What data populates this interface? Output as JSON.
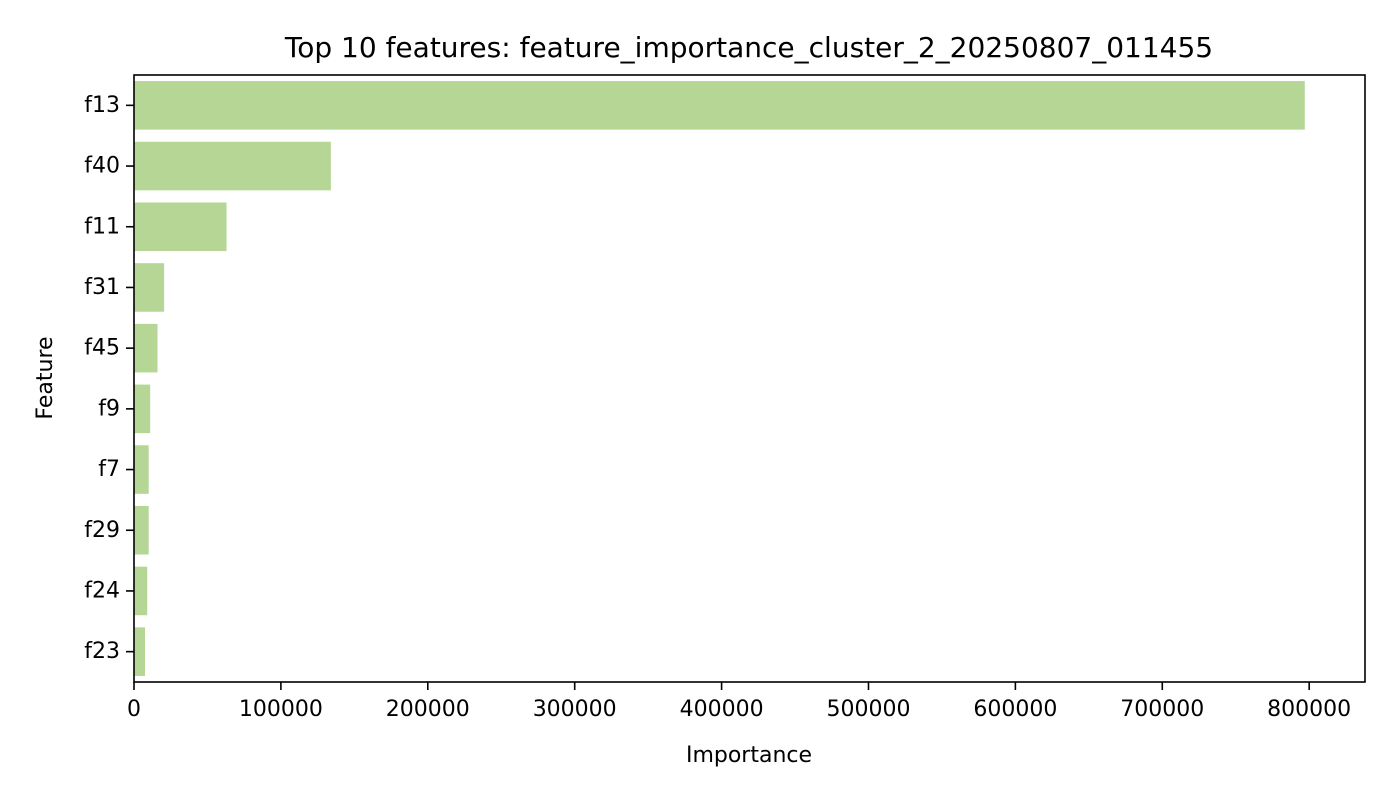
{
  "colors": {
    "bar": "#b5d695",
    "axis": "#000000",
    "background": "#ffffff"
  },
  "chart_data": {
    "type": "bar",
    "orientation": "horizontal",
    "title": "Top 10 features: feature_importance_cluster_2_20250807_011455",
    "xlabel": "Importance",
    "ylabel": "Feature",
    "categories": [
      "f13",
      "f40",
      "f11",
      "f31",
      "f45",
      "f9",
      "f7",
      "f29",
      "f24",
      "f23"
    ],
    "values": [
      797000,
      134000,
      63000,
      20500,
      16000,
      11000,
      10000,
      10000,
      9000,
      7500
    ],
    "xlim": [
      0,
      838000
    ],
    "xticks": [
      0,
      100000,
      200000,
      300000,
      400000,
      500000,
      600000,
      700000,
      800000
    ],
    "xtick_labels": [
      "0",
      "100000",
      "200000",
      "300000",
      "400000",
      "500000",
      "600000",
      "700000",
      "800000"
    ],
    "grid": false,
    "legend": "none"
  }
}
